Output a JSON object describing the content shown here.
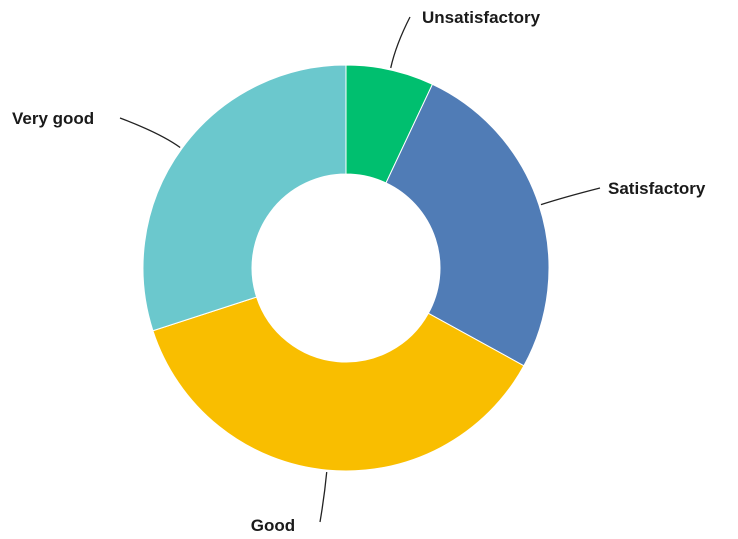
{
  "chart_data": {
    "type": "pie",
    "variant": "donut",
    "title": "",
    "legend": "none",
    "slices": [
      {
        "label": "Unsatisfactory",
        "value": 7,
        "color": "#00BF6F"
      },
      {
        "label": "Satisfactory",
        "value": 26,
        "color": "#507CB6"
      },
      {
        "label": "Good",
        "value": 37,
        "color": "#F9BE00"
      },
      {
        "label": "Very good",
        "value": 30,
        "color": "#6BC8CD"
      }
    ]
  }
}
